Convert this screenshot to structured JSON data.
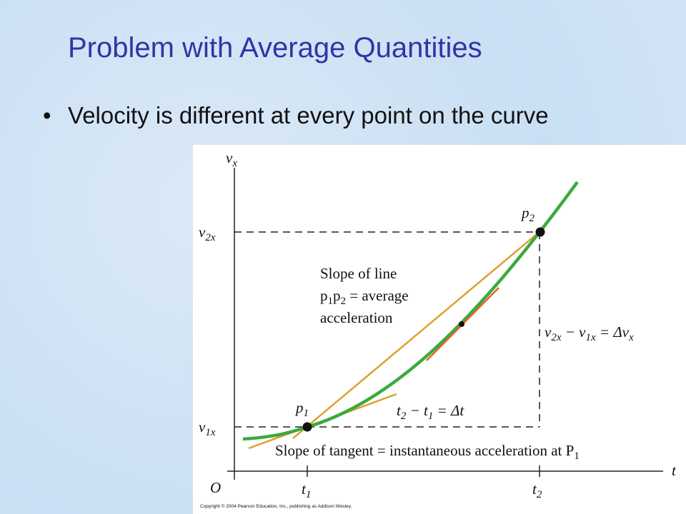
{
  "title": "Problem with Average Quantities",
  "bullets": [
    "Velocity is different at every point on the curve"
  ],
  "figure": {
    "labels": {
      "y_axis": [
        {
          "text": "v"
        },
        {
          "sub": "x"
        }
      ],
      "x_axis": [
        {
          "text": "t"
        }
      ],
      "origin": [
        {
          "text": "O"
        }
      ],
      "v2": [
        {
          "text": "v"
        },
        {
          "sub": "2x"
        }
      ],
      "v1": [
        {
          "text": "v"
        },
        {
          "sub": "1x"
        }
      ],
      "t1": [
        {
          "text": "t"
        },
        {
          "sub": "1"
        }
      ],
      "t2": [
        {
          "text": "t"
        },
        {
          "sub": "2"
        }
      ],
      "p1": [
        {
          "text": "p"
        },
        {
          "sub": "1"
        }
      ],
      "p2": [
        {
          "text": "p"
        },
        {
          "sub": "2"
        }
      ],
      "delta_v": [
        {
          "text": "v"
        },
        {
          "sub": "2x"
        },
        {
          "text": " − v"
        },
        {
          "sub": "1x"
        },
        {
          "text": " = Δv"
        },
        {
          "sub": "x"
        }
      ],
      "delta_t": [
        {
          "text": "t"
        },
        {
          "sub": "2"
        },
        {
          "text": " − t"
        },
        {
          "sub": "1"
        },
        {
          "text": " = Δt"
        }
      ],
      "tangent": [
        {
          "text": "Slope of tangent = instantaneous acceleration at P"
        },
        {
          "sub": "1"
        }
      ]
    },
    "annotation": [
      [
        {
          "text": "Slope of line"
        }
      ],
      [
        {
          "text": "p"
        },
        {
          "sub": "1"
        },
        {
          "text": "p"
        },
        {
          "sub": "2"
        },
        {
          "text": " = average"
        }
      ],
      [
        {
          "text": "acceleration"
        }
      ]
    ],
    "copyright": "Copyright © 2004 Pearson Education, Inc., publishing as Addison Wesley."
  }
}
